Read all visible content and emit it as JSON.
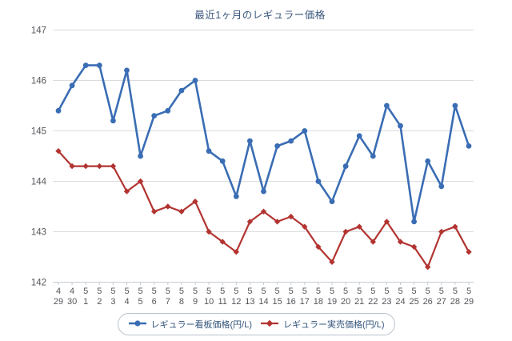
{
  "chart": {
    "title": "最近1ヶ月のレギュラー価格"
  },
  "chart_data": {
    "type": "line",
    "title": "最近1ヶ月のレギュラー価格",
    "xlabel": "",
    "ylabel": "",
    "ylim": [
      142,
      147
    ],
    "y_ticks": [
      147,
      146,
      145,
      144,
      143,
      142
    ],
    "grid": "horizontal",
    "legend_position": "bottom",
    "x_tick_months": [
      "4",
      "4",
      "5",
      "5",
      "5",
      "5",
      "5",
      "5",
      "5",
      "5",
      "5",
      "5",
      "5",
      "5",
      "5",
      "5",
      "5",
      "5",
      "5",
      "5",
      "5",
      "5",
      "5",
      "5",
      "5",
      "5",
      "5",
      "5",
      "5",
      "5",
      "5"
    ],
    "x_tick_days": [
      "29",
      "30",
      "1",
      "2",
      "3",
      "4",
      "5",
      "6",
      "7",
      "8",
      "9",
      "10",
      "11",
      "12",
      "13",
      "14",
      "15",
      "16",
      "17",
      "18",
      "19",
      "20",
      "21",
      "22",
      "23",
      "24",
      "25",
      "26",
      "27",
      "28",
      "29"
    ],
    "series": [
      {
        "name": "レギュラー看板価格(円/L)",
        "color": "#3a6db4",
        "marker": "circle",
        "values": [
          145.4,
          145.9,
          146.3,
          146.3,
          145.2,
          146.2,
          144.5,
          145.3,
          145.4,
          145.8,
          146.0,
          144.6,
          144.4,
          143.7,
          144.8,
          143.8,
          144.7,
          144.8,
          145.0,
          144.0,
          143.6,
          144.3,
          144.9,
          144.5,
          145.5,
          145.1,
          143.2,
          144.4,
          143.9,
          145.5,
          144.7
        ]
      },
      {
        "name": "レギュラー実売価格(円/L)",
        "color": "#b23431",
        "marker": "diamond",
        "values": [
          144.6,
          144.3,
          144.3,
          144.3,
          144.3,
          143.8,
          144.0,
          143.4,
          143.5,
          143.4,
          143.6,
          143.0,
          142.8,
          142.6,
          143.2,
          143.4,
          143.2,
          143.3,
          143.1,
          142.7,
          142.4,
          143.0,
          143.1,
          142.8,
          143.2,
          142.8,
          142.7,
          142.3,
          143.0,
          143.1,
          142.6
        ]
      }
    ],
    "colors": {
      "grid": "#dcdcdc",
      "axis": "#c6ccd2",
      "tick_label": "#54565a",
      "title_text": "#3a577c",
      "legend_text": "#34557c",
      "legend_border": "#b8c2cc",
      "background": "#ffffff"
    }
  }
}
